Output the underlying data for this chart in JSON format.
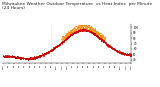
{
  "title": "Milwaukee Weather Outdoor Temperature  vs Heat Index  per Minute  (24 Hours)",
  "title_fontsize": 3.2,
  "background_color": "#ffffff",
  "temp_color": "#cc0000",
  "heat_index_color": "#ff8800",
  "vline_color": "#aaaaaa",
  "vline_x_minute": 540,
  "xlim": [
    0,
    1440
  ],
  "ylim": [
    35,
    105
  ],
  "yticks": [
    40,
    50,
    60,
    70,
    80,
    90,
    100
  ],
  "marker_size": 0.3,
  "tick_fontsize": 2.5,
  "x_tick_step": 60
}
